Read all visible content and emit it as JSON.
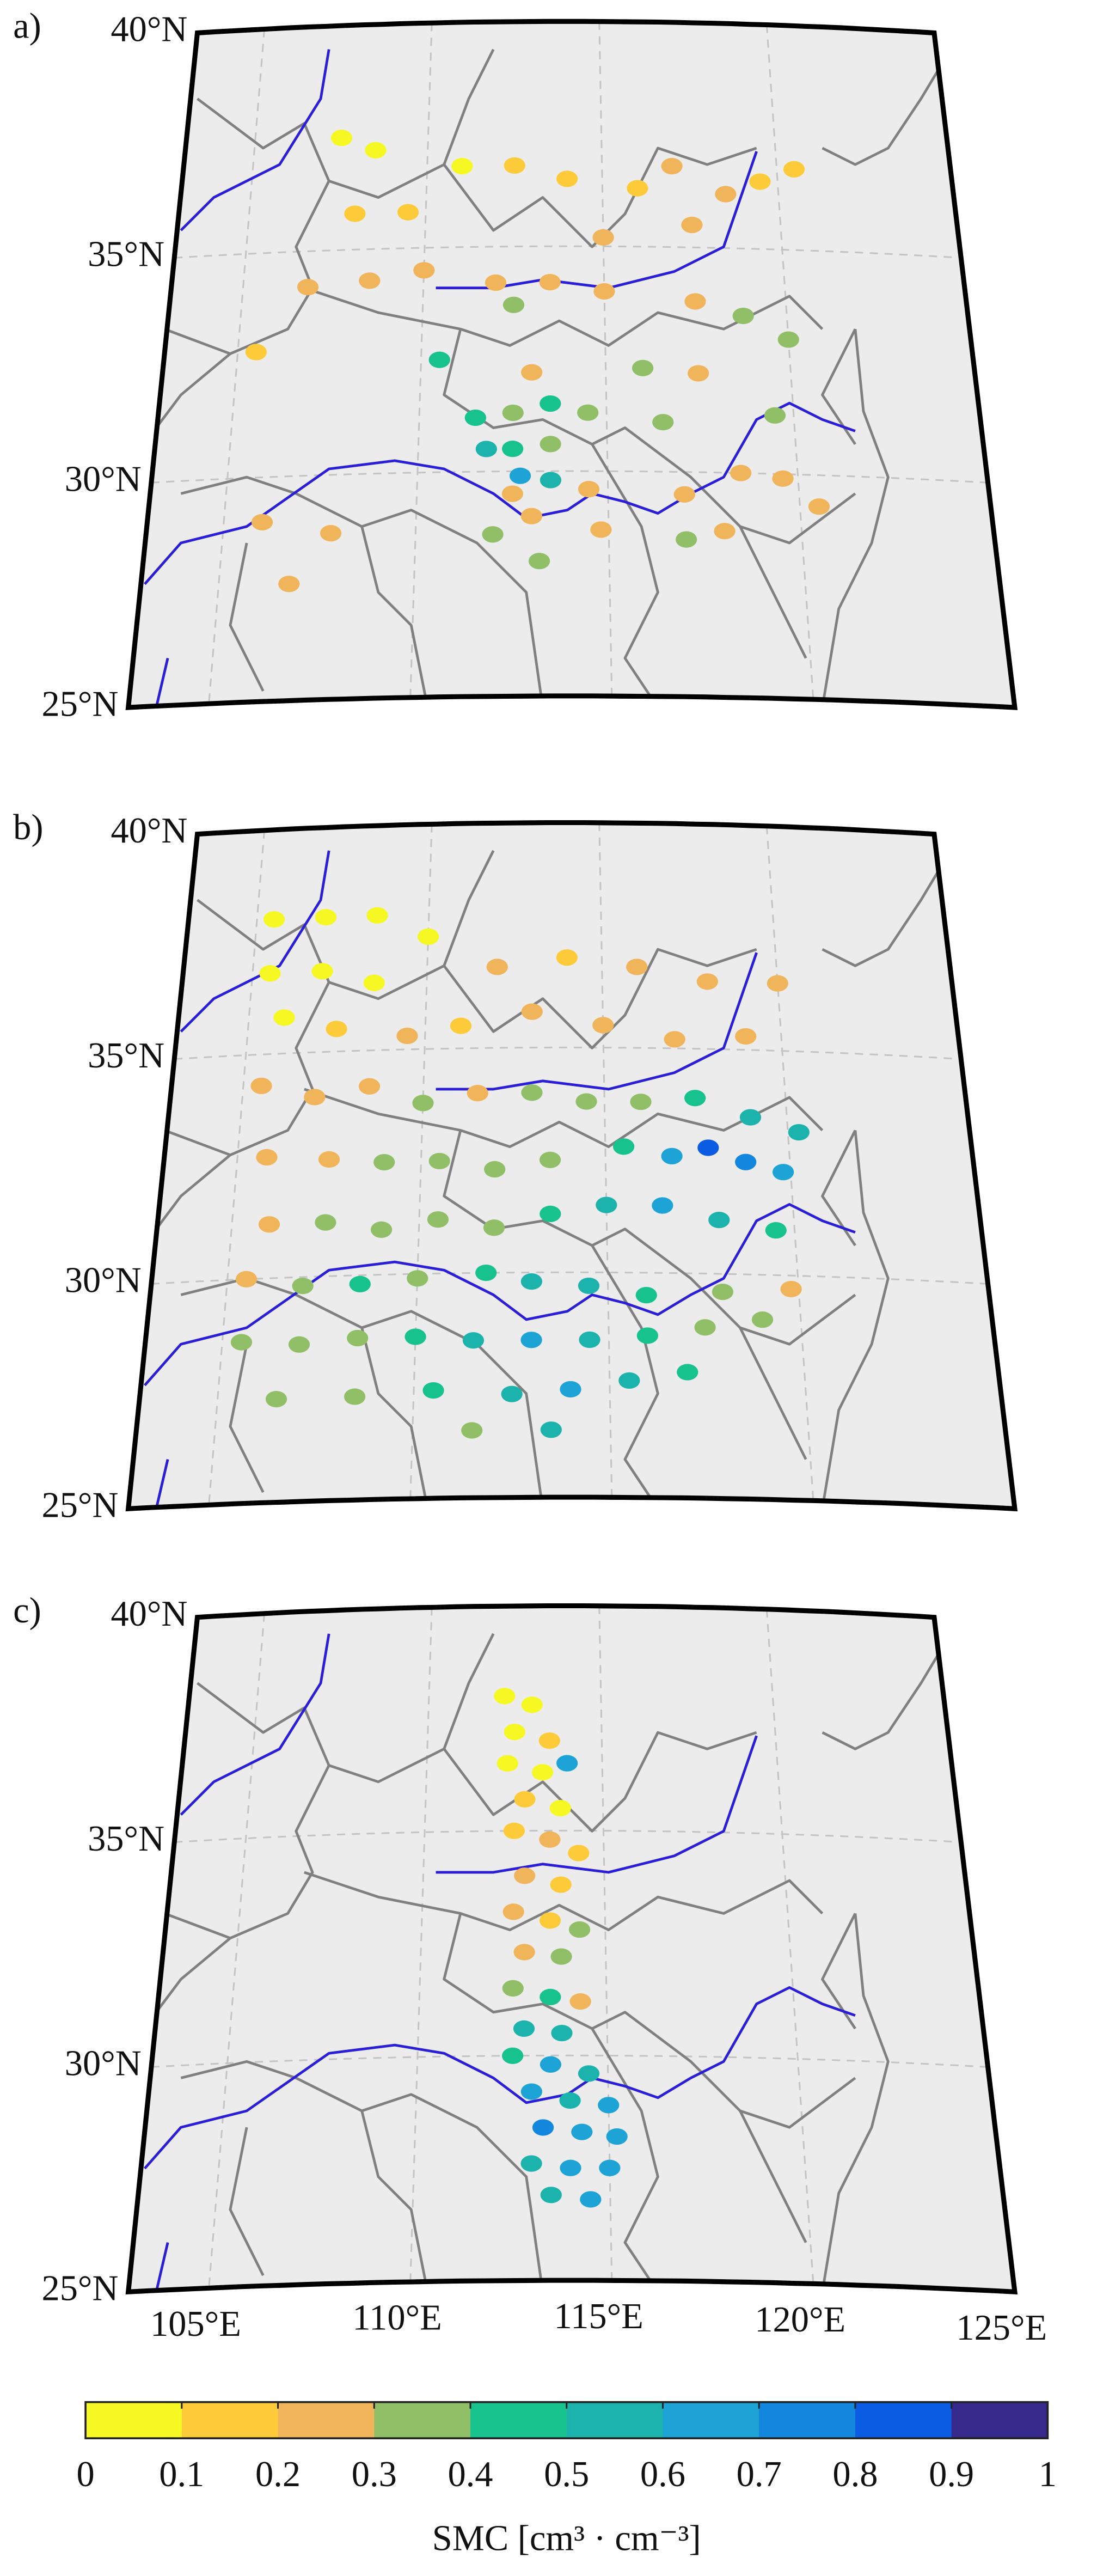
{
  "chart_data": {
    "type": "map-scatter",
    "xlim": [
      103,
      125
    ],
    "ylim": [
      25,
      40
    ],
    "yticks": [
      {
        "value": 40,
        "label": "40°N"
      },
      {
        "value": 35,
        "label": "35°N"
      },
      {
        "value": 30,
        "label": "30°N"
      },
      {
        "value": 25,
        "label": "25°N"
      }
    ],
    "xticks": [
      {
        "value": 105,
        "label": "105°E"
      },
      {
        "value": 110,
        "label": "110°E"
      },
      {
        "value": 115,
        "label": "115°E"
      },
      {
        "value": 120,
        "label": "120°E"
      },
      {
        "value": 125,
        "label": "125°E"
      }
    ],
    "panels": [
      {
        "label": "a)",
        "lon": [
          107.5,
          108.5,
          111,
          112.5,
          114,
          116,
          117,
          118.5,
          119.5,
          120.5,
          108,
          109.5,
          115,
          117.5,
          106.8,
          108.5,
          110,
          112,
          113.5,
          115,
          112.5,
          117.5,
          118.8,
          120,
          105.5,
          110.5,
          113,
          116,
          117.5,
          119.5,
          111.5,
          112.5,
          113.5,
          114.5,
          116.5,
          111.8,
          112.5,
          113.5,
          112.7,
          113.5,
          112.5,
          114.5,
          117,
          118.5,
          119.6,
          120.5,
          106,
          107.8,
          112,
          113,
          114.8,
          117,
          118,
          106.8,
          113.2
        ],
        "lat": [
          37.5,
          37.2,
          36.8,
          36.8,
          36.5,
          36.3,
          36.8,
          36.2,
          36.5,
          36.8,
          35.8,
          35.8,
          35.2,
          35.5,
          34.2,
          34.3,
          34.5,
          34.2,
          34.2,
          34,
          33.7,
          33.8,
          33.5,
          33,
          32.8,
          32.5,
          32.2,
          32.3,
          32.2,
          31.3,
          31.2,
          31.3,
          31.5,
          31.3,
          31.1,
          30.5,
          30.5,
          30.6,
          29.9,
          29.8,
          29.5,
          29.6,
          29.5,
          30,
          29.9,
          29.3,
          29,
          28.7,
          28.6,
          29,
          28.7,
          28.5,
          28.7,
          27.6,
          28
        ],
        "smc": [
          0.05,
          0.05,
          0.08,
          0.12,
          0.15,
          0.18,
          0.2,
          0.22,
          0.1,
          0.15,
          0.15,
          0.18,
          0.25,
          0.22,
          0.2,
          0.22,
          0.25,
          0.25,
          0.22,
          0.28,
          0.35,
          0.28,
          0.35,
          0.3,
          0.15,
          0.4,
          0.22,
          0.3,
          0.25,
          0.3,
          0.45,
          0.35,
          0.4,
          0.3,
          0.35,
          0.55,
          0.45,
          0.35,
          0.65,
          0.5,
          0.25,
          0.2,
          0.2,
          0.25,
          0.25,
          0.25,
          0.2,
          0.25,
          0.35,
          0.25,
          0.2,
          0.35,
          0.28,
          0.2,
          0.3
        ]
      },
      {
        "label": "b)",
        "lon": [
          105.5,
          107,
          108.5,
          110,
          105.5,
          107,
          108.5,
          106,
          107.5,
          112,
          114,
          116,
          118,
          120,
          113,
          115,
          117,
          119,
          109.5,
          111,
          105.5,
          107,
          108.5,
          110,
          111.5,
          113,
          114.5,
          116,
          117.5,
          119,
          120.3,
          105.8,
          107.5,
          109,
          110.5,
          112,
          113.5,
          115.5,
          116.8,
          117.8,
          118.8,
          119.8,
          106,
          107.5,
          109,
          110.5,
          112,
          113.5,
          115,
          116.5,
          118,
          119.5,
          105.5,
          107,
          108.5,
          110,
          111.8,
          113,
          114.5,
          116,
          118,
          119.8,
          105.5,
          107,
          108.5,
          110,
          111.5,
          113,
          114.5,
          116,
          117.5,
          119,
          106.5,
          108.5,
          110.5,
          112.5,
          114,
          115.5,
          117,
          111.5,
          113.5
        ],
        "lat": [
          38,
          38,
          38,
          37.5,
          36.8,
          36.8,
          36.5,
          35.8,
          35.5,
          36.8,
          37,
          36.8,
          36.5,
          36.5,
          35.8,
          35.5,
          35.2,
          35.3,
          35.3,
          35.5,
          34.3,
          34,
          34.2,
          33.8,
          34,
          34,
          33.8,
          33.8,
          33.9,
          33.5,
          33.2,
          32.7,
          32.6,
          32.5,
          32.5,
          32.3,
          32.5,
          32.8,
          32.6,
          32.8,
          32.5,
          32.3,
          31.2,
          31.2,
          31,
          31.2,
          31,
          31.3,
          31.5,
          31.5,
          31.2,
          31,
          30,
          29.8,
          29.8,
          29.9,
          30,
          29.8,
          29.7,
          29.5,
          29.6,
          29.7,
          28.6,
          28.5,
          28.6,
          28.6,
          28.5,
          28.5,
          28.5,
          28.6,
          28.8,
          29,
          27.3,
          27.3,
          27.4,
          27.3,
          27.4,
          27.6,
          27.8,
          26.5,
          26.5
        ],
        "smc": [
          0.05,
          0.05,
          0.08,
          0.05,
          0.05,
          0.08,
          0.05,
          0.08,
          0.1,
          0.2,
          0.18,
          0.2,
          0.22,
          0.2,
          0.25,
          0.22,
          0.28,
          0.25,
          0.2,
          0.15,
          0.2,
          0.25,
          0.22,
          0.35,
          0.25,
          0.3,
          0.35,
          0.3,
          0.45,
          0.5,
          0.55,
          0.22,
          0.25,
          0.3,
          0.35,
          0.3,
          0.35,
          0.45,
          0.65,
          0.85,
          0.75,
          0.6,
          0.25,
          0.3,
          0.35,
          0.3,
          0.35,
          0.45,
          0.55,
          0.6,
          0.5,
          0.4,
          0.25,
          0.3,
          0.4,
          0.35,
          0.45,
          0.55,
          0.5,
          0.45,
          0.35,
          0.25,
          0.3,
          0.35,
          0.3,
          0.4,
          0.5,
          0.6,
          0.55,
          0.45,
          0.35,
          0.3,
          0.3,
          0.35,
          0.45,
          0.55,
          0.6,
          0.5,
          0.4,
          0.35,
          0.5
        ]
      },
      {
        "label": "c)",
        "lon": [
          112.2,
          113,
          112.5,
          113.5,
          112.3,
          113.3,
          114,
          112.8,
          113.8,
          112.5,
          113.5,
          114.3,
          112.8,
          113.8,
          112.5,
          113.5,
          114.3,
          112.8,
          113.8,
          112.5,
          113.5,
          114.3,
          112.8,
          113.8,
          112.5,
          113.5,
          114.5,
          113,
          114,
          115,
          113.3,
          114.3,
          115.2,
          113,
          114,
          115,
          113.5,
          114.5
        ],
        "lat": [
          38,
          37.8,
          37.2,
          37,
          36.5,
          36.3,
          36.5,
          35.7,
          35.5,
          35,
          34.8,
          34.5,
          34,
          33.8,
          33.2,
          33,
          32.8,
          32.3,
          32.2,
          31.5,
          31.3,
          31.2,
          30.6,
          30.5,
          30,
          29.8,
          29.6,
          29.2,
          29,
          28.9,
          28.4,
          28.3,
          28.2,
          27.6,
          27.5,
          27.5,
          26.9,
          26.8
        ],
        "smc": [
          0.05,
          0.08,
          0.05,
          0.1,
          0.08,
          0.05,
          0.6,
          0.12,
          0.08,
          0.15,
          0.2,
          0.1,
          0.22,
          0.18,
          0.25,
          0.15,
          0.35,
          0.2,
          0.3,
          0.35,
          0.45,
          0.25,
          0.5,
          0.55,
          0.45,
          0.6,
          0.5,
          0.65,
          0.55,
          0.6,
          0.7,
          0.6,
          0.65,
          0.55,
          0.65,
          0.6,
          0.5,
          0.6
        ]
      }
    ],
    "colorbar": {
      "label": "SMC [cm³ · cm⁻³]",
      "ticks": [
        0,
        0.1,
        0.2,
        0.3,
        0.4,
        0.5,
        0.6,
        0.7,
        0.8,
        0.9,
        1
      ],
      "colors": [
        "#f6f824",
        "#fdcb3a",
        "#f0b45a",
        "#90bf68",
        "#18c28c",
        "#1db3ad",
        "#1da3d6",
        "#1386de",
        "#0b5ce3",
        "#35298c"
      ]
    }
  }
}
